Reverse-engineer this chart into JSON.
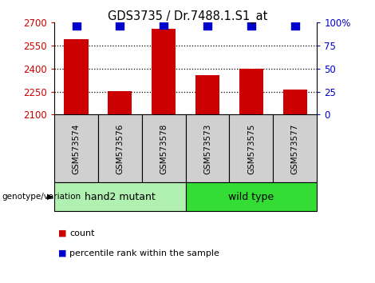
{
  "title": "GDS3735 / Dr.7488.1.S1_at",
  "samples": [
    "GSM573574",
    "GSM573576",
    "GSM573578",
    "GSM573573",
    "GSM573575",
    "GSM573577"
  ],
  "counts": [
    2590,
    2253,
    2660,
    2355,
    2400,
    2262
  ],
  "percentiles": [
    97,
    97,
    98,
    97,
    97,
    97
  ],
  "ylim": [
    2100,
    2700
  ],
  "yticks": [
    2100,
    2250,
    2400,
    2550,
    2700
  ],
  "y2lim": [
    0,
    100
  ],
  "y2ticks": [
    0,
    25,
    50,
    75,
    100
  ],
  "y2ticklabels": [
    "0",
    "25",
    "50",
    "75",
    "100%"
  ],
  "bar_color": "#cc0000",
  "dot_color": "#0000cc",
  "left_color": "#cc0000",
  "right_color": "#0000cc",
  "group_label": "genotype/variation",
  "group1_label": "hand2 mutant",
  "group1_color": "#b0f0b0",
  "group2_label": "wild type",
  "group2_color": "#33dd33",
  "legend_count_label": "count",
  "legend_pct_label": "percentile rank within the sample",
  "sample_box_color": "#d0d0d0",
  "dot_size": 55,
  "bar_width": 0.55
}
